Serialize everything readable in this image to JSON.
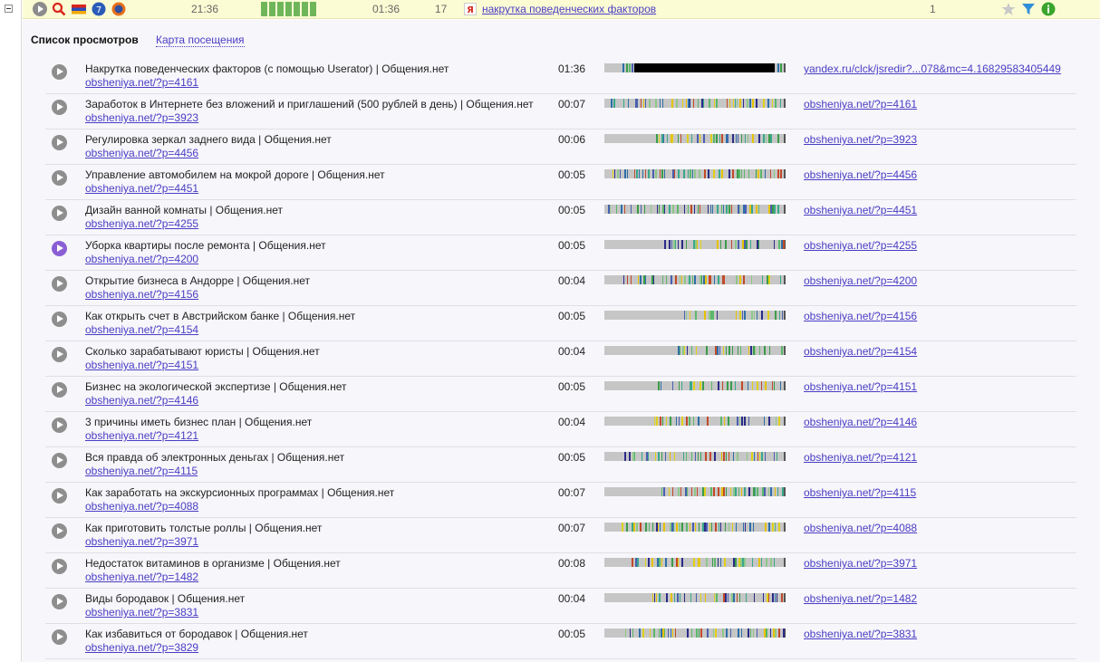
{
  "toolbar": {
    "time_start": "21:36",
    "segments": 7,
    "duration": "01:36",
    "pages": "17",
    "search_query": "накрутка поведенческих факторов",
    "count": "1"
  },
  "tabs": {
    "active": "Список просмотров",
    "link": "Карта посещения"
  },
  "colors": {
    "accent": "#4a3dc4",
    "highlight_bar": "#fcfcd4",
    "segment": "#6fb65a"
  },
  "rows": [
    {
      "title": "Накрутка поведенческих факторов (с помощью Userator) | Общения.нет",
      "url": "obsheniya.net/?p=4161",
      "duration": "01:36",
      "referrer": "yandex.ru/clck/jsredir?...078&mc=4.16829583405449"
    },
    {
      "title": "Заработок в Интернете без вложений и приглашений (500 рублей в день) | Общения.нет",
      "url": "obsheniya.net/?p=3923",
      "duration": "00:07",
      "referrer": "obsheniya.net/?p=4161"
    },
    {
      "title": "Регулировка зеркал заднего вида | Общения.нет",
      "url": "obsheniya.net/?p=4456",
      "duration": "00:06",
      "referrer": "obsheniya.net/?p=3923"
    },
    {
      "title": "Управление автомобилем на мокрой дороге | Общения.нет",
      "url": "obsheniya.net/?p=4451",
      "duration": "00:05",
      "referrer": "obsheniya.net/?p=4456"
    },
    {
      "title": "Дизайн ванной комнаты | Общения.нет",
      "url": "obsheniya.net/?p=4255",
      "duration": "00:05",
      "referrer": "obsheniya.net/?p=4451"
    },
    {
      "title": "Уборка квартиры после ремонта | Общения.нет",
      "url": "obsheniya.net/?p=4200",
      "duration": "00:05",
      "referrer": "obsheniya.net/?p=4255",
      "active": true
    },
    {
      "title": "Открытие бизнеса в Андорре | Общения.нет",
      "url": "obsheniya.net/?p=4156",
      "duration": "00:04",
      "referrer": "obsheniya.net/?p=4200"
    },
    {
      "title": "Как открыть счет в Австрийском банке | Общения.нет",
      "url": "obsheniya.net/?p=4154",
      "duration": "00:05",
      "referrer": "obsheniya.net/?p=4156"
    },
    {
      "title": "Сколько зарабатывают юристы | Общения.нет",
      "url": "obsheniya.net/?p=4151",
      "duration": "00:04",
      "referrer": "obsheniya.net/?p=4154"
    },
    {
      "title": "Бизнес на экологической экспертизе | Общения.нет",
      "url": "obsheniya.net/?p=4146",
      "duration": "00:05",
      "referrer": "obsheniya.net/?p=4151"
    },
    {
      "title": "3 причины иметь бизнес план | Общения.нет",
      "url": "obsheniya.net/?p=4121",
      "duration": "00:04",
      "referrer": "obsheniya.net/?p=4146"
    },
    {
      "title": "Вся правда об электронных деньгах | Общения.нет",
      "url": "obsheniya.net/?p=4115",
      "duration": "00:05",
      "referrer": "obsheniya.net/?p=4121"
    },
    {
      "title": "Как заработать на экскурсионных программах | Общения.нет",
      "url": "obsheniya.net/?p=4088",
      "duration": "00:07",
      "referrer": "obsheniya.net/?p=4115"
    },
    {
      "title": "Как приготовить толстые роллы | Общения.нет",
      "url": "obsheniya.net/?p=3971",
      "duration": "00:07",
      "referrer": "obsheniya.net/?p=4088"
    },
    {
      "title": "Недостаток витаминов в организме | Общения.нет",
      "url": "obsheniya.net/?p=1482",
      "duration": "00:08",
      "referrer": "obsheniya.net/?p=3971"
    },
    {
      "title": "Виды бородавок | Общения.нет",
      "url": "obsheniya.net/?p=3831",
      "duration": "00:04",
      "referrer": "obsheniya.net/?p=1482"
    },
    {
      "title": "Как избавиться от бородавок | Общения.нет",
      "url": "obsheniya.net/?p=3829",
      "duration": "00:05",
      "referrer": "obsheniya.net/?p=3831"
    }
  ]
}
